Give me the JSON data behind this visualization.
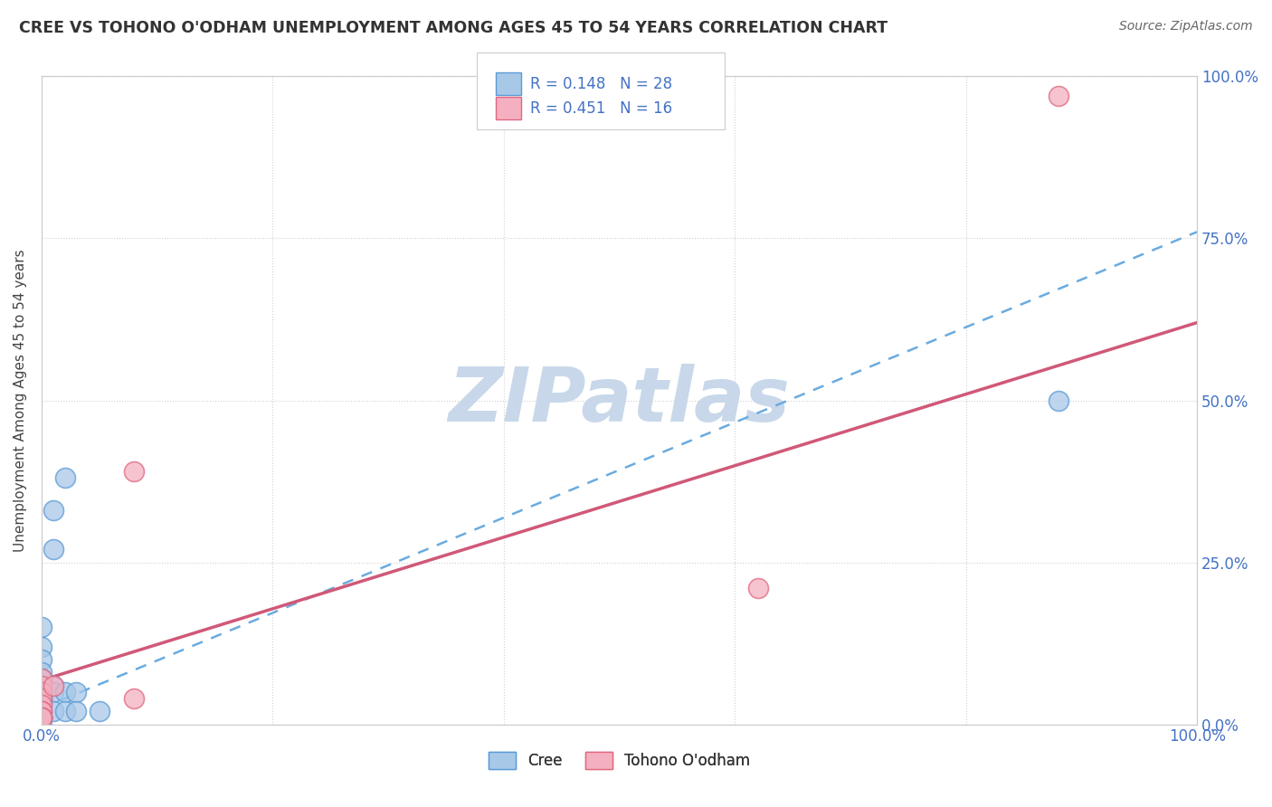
{
  "title": "CREE VS TOHONO O'ODHAM UNEMPLOYMENT AMONG AGES 45 TO 54 YEARS CORRELATION CHART",
  "source": "Source: ZipAtlas.com",
  "ylabel": "Unemployment Among Ages 45 to 54 years",
  "xlim": [
    0,
    1
  ],
  "ylim": [
    0,
    1
  ],
  "cree_R": 0.148,
  "cree_N": 28,
  "tohono_R": 0.451,
  "tohono_N": 16,
  "cree_color": "#a8c8e8",
  "tohono_color": "#f4b0c0",
  "cree_edge_color": "#5b9bd5",
  "tohono_edge_color": "#e06880",
  "cree_line_color": "#6aabdf",
  "tohono_line_color": "#d05878",
  "background_color": "#ffffff",
  "grid_color": "#d0d0d0",
  "watermark_text": "ZIPatlas",
  "watermark_color": "#c8d8ea",
  "legend_text_color": "#4472c4",
  "tick_color": "#4472c4",
  "title_color": "#333333",
  "cree_x": [
    0.02,
    0.01,
    0.01,
    0.0,
    0.0,
    0.0,
    0.0,
    0.0,
    0.0,
    0.01,
    0.01,
    0.02,
    0.03,
    0.0,
    0.0,
    0.0,
    0.0,
    0.0,
    0.0,
    0.01,
    0.02,
    0.03,
    0.05,
    0.0,
    0.0,
    0.0,
    0.88,
    0.0
  ],
  "cree_y": [
    0.38,
    0.33,
    0.27,
    0.15,
    0.12,
    0.1,
    0.08,
    0.07,
    0.06,
    0.06,
    0.05,
    0.05,
    0.05,
    0.04,
    0.04,
    0.03,
    0.03,
    0.03,
    0.02,
    0.02,
    0.02,
    0.02,
    0.02,
    0.01,
    0.01,
    0.01,
    0.5,
    0.0
  ],
  "tohono_x": [
    0.0,
    0.0,
    0.0,
    0.0,
    0.01,
    0.08,
    0.08,
    0.0,
    0.0,
    0.0,
    0.62,
    0.0,
    0.0,
    0.0,
    0.0,
    0.88
  ],
  "tohono_y": [
    0.07,
    0.06,
    0.05,
    0.04,
    0.06,
    0.39,
    0.04,
    0.03,
    0.02,
    0.02,
    0.21,
    0.01,
    0.01,
    0.01,
    0.01,
    0.97
  ],
  "cree_line_x0": 0.0,
  "cree_line_y0": 0.025,
  "cree_line_x1": 1.0,
  "cree_line_y1": 0.76,
  "tohono_line_x0": 0.0,
  "tohono_line_y0": 0.068,
  "tohono_line_x1": 1.0,
  "tohono_line_y1": 0.62
}
